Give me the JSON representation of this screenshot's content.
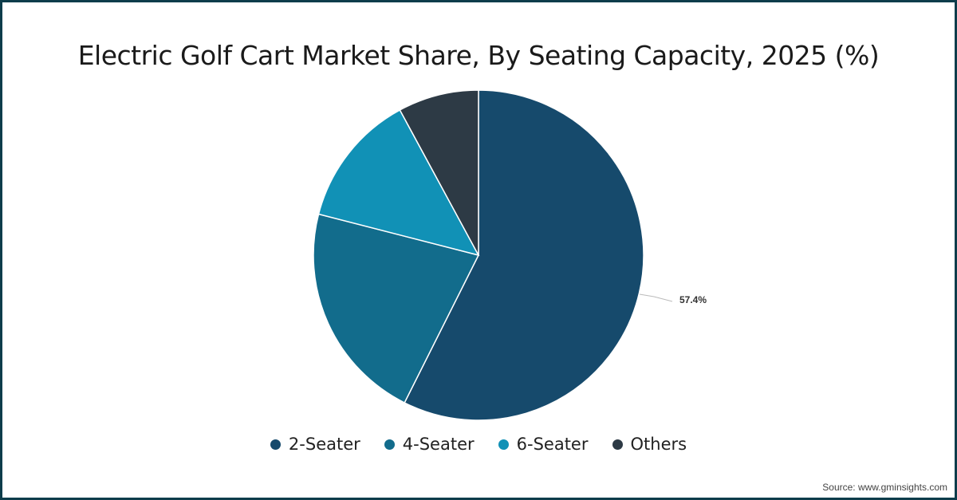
{
  "chart_data": {
    "type": "pie",
    "title": "Electric Golf Cart Market Share, By Seating Capacity, 2025 (%)",
    "categories": [
      "2-Seater",
      "4-Seater",
      "6-Seater",
      "Others"
    ],
    "values": [
      57.4,
      21.6,
      13.1,
      7.9
    ],
    "colors": [
      "#164a6c",
      "#126c8c",
      "#1191b6",
      "#2d3a45"
    ],
    "data_labels": [
      {
        "category": "2-Seater",
        "text": "57.4%"
      }
    ],
    "legend_position": "bottom"
  },
  "title": "Electric Golf Cart Market Share, By Seating Capacity, 2025 (%)",
  "label_2_seater": "57.4%",
  "legend": [
    {
      "label": "2-Seater",
      "color": "#164a6c"
    },
    {
      "label": "4-Seater",
      "color": "#126c8c"
    },
    {
      "label": "6-Seater",
      "color": "#1191b6"
    },
    {
      "label": "Others",
      "color": "#2d3a45"
    }
  ],
  "source": "Source: www.gminsights.com"
}
